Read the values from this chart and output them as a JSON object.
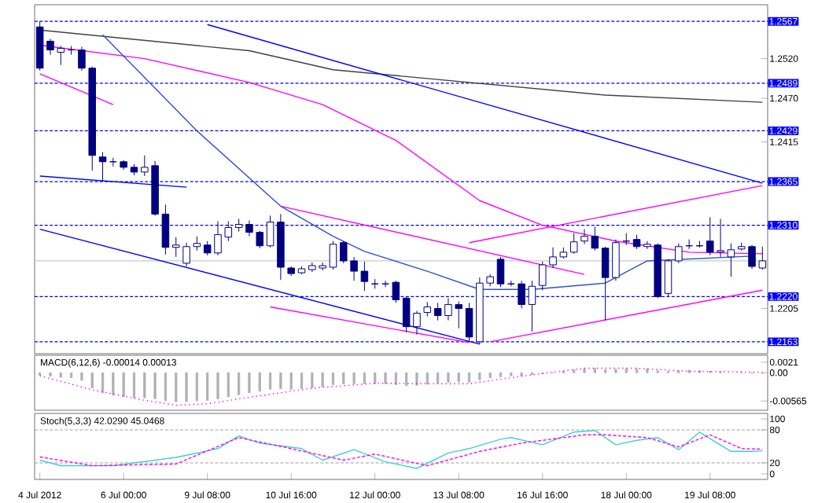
{
  "chart_data": [
    {
      "type": "candlestick",
      "color": "#000080",
      "categories": [
        null,
        null,
        null,
        null,
        null,
        null,
        null,
        null,
        null,
        null,
        null,
        null,
        null,
        null,
        null,
        null,
        null,
        null,
        null,
        null,
        null,
        null,
        null,
        null,
        null,
        null,
        null,
        null,
        null,
        null,
        null,
        null,
        null,
        null,
        null,
        null,
        null,
        null,
        null,
        null,
        null,
        null,
        null,
        null,
        null,
        null,
        null,
        null,
        null,
        null,
        null,
        null,
        null,
        null,
        null,
        null,
        null,
        null,
        null,
        null,
        null,
        null,
        null,
        null,
        null,
        null,
        null,
        null,
        null,
        null
      ],
      "ohlc": [
        [
          1.256,
          1.2567,
          1.2505,
          1.2508
        ],
        [
          1.2542,
          1.2545,
          1.2525,
          1.2531
        ],
        [
          1.2528,
          1.2536,
          1.2512,
          1.2533
        ],
        [
          1.2531,
          1.2536,
          1.2525,
          1.2531
        ],
        [
          1.2531,
          1.2535,
          1.2505,
          1.2508
        ],
        [
          1.2508,
          1.251,
          1.2379,
          1.2398
        ],
        [
          1.2396,
          1.2402,
          1.2366,
          1.239
        ],
        [
          1.239,
          1.2395,
          1.2384,
          1.239
        ],
        [
          1.239,
          1.2392,
          1.238,
          1.2383
        ],
        [
          1.2383,
          1.2387,
          1.2373,
          1.2377
        ],
        [
          1.2377,
          1.2398,
          1.2372,
          1.2383
        ],
        [
          1.2385,
          1.2391,
          1.2322,
          1.2324
        ],
        [
          1.2324,
          1.2336,
          1.2273,
          1.2282
        ],
        [
          1.2282,
          1.2295,
          1.227,
          1.2285
        ],
        [
          1.2262,
          1.2288,
          1.2258,
          1.2283
        ],
        [
          1.2283,
          1.2296,
          1.2278,
          1.2287
        ],
        [
          1.2285,
          1.229,
          1.2272,
          1.2275
        ],
        [
          1.2275,
          1.2315,
          1.2272,
          1.2298
        ],
        [
          1.2295,
          1.2315,
          1.229,
          1.2307
        ],
        [
          1.2307,
          1.2318,
          1.2302,
          1.2311
        ],
        [
          1.2311,
          1.2316,
          1.2296,
          1.2301
        ],
        [
          1.2301,
          1.2303,
          1.2281,
          1.2284
        ],
        [
          1.2284,
          1.2322,
          1.2282,
          1.2314
        ],
        [
          1.2314,
          1.2324,
          1.2241,
          1.2257
        ],
        [
          1.2256,
          1.2258,
          1.2246,
          1.2249
        ],
        [
          1.225,
          1.2258,
          1.2248,
          1.2255
        ],
        [
          1.2254,
          1.2263,
          1.2251,
          1.2259
        ],
        [
          1.2256,
          1.2263,
          1.2253,
          1.2259
        ],
        [
          1.2257,
          1.229,
          1.2254,
          1.2286
        ],
        [
          1.2288,
          1.229,
          1.2262,
          1.2265
        ],
        [
          1.2265,
          1.227,
          1.224,
          1.2252
        ],
        [
          1.2252,
          1.2264,
          1.2227,
          1.2239
        ],
        [
          1.2236,
          1.2242,
          1.223,
          1.2236
        ],
        [
          1.2236,
          1.224,
          1.2232,
          1.2236
        ],
        [
          1.2238,
          1.224,
          1.2212,
          1.2216
        ],
        [
          1.2218,
          1.222,
          1.2175,
          1.2182
        ],
        [
          1.2182,
          1.2202,
          1.2172,
          1.2199
        ],
        [
          1.22,
          1.2213,
          1.2195,
          1.2207
        ],
        [
          1.2205,
          1.2212,
          1.219,
          1.2196
        ],
        [
          1.2196,
          1.2218,
          1.219,
          1.221
        ],
        [
          1.221,
          1.2214,
          1.218,
          1.2205
        ],
        [
          1.2205,
          1.2212,
          1.2163,
          1.2169
        ],
        [
          1.2163,
          1.2244,
          1.216,
          1.2237
        ],
        [
          1.2237,
          1.2248,
          1.2233,
          1.2245
        ],
        [
          1.2267,
          1.227,
          1.2232,
          1.2236
        ],
        [
          1.2236,
          1.224,
          1.2233,
          1.2236
        ],
        [
          1.2236,
          1.224,
          1.2205,
          1.221
        ],
        [
          1.221,
          1.224,
          1.2176,
          1.2233
        ],
        [
          1.2234,
          1.2264,
          1.2228,
          1.226
        ],
        [
          1.226,
          1.2282,
          1.2256,
          1.227
        ],
        [
          1.227,
          1.2282,
          1.2268,
          1.2276
        ],
        [
          1.2276,
          1.23,
          1.2274,
          1.2289
        ],
        [
          1.229,
          1.2305,
          1.2286,
          1.2296
        ],
        [
          1.2296,
          1.2308,
          1.2278,
          1.2281
        ],
        [
          1.2281,
          1.2283,
          1.219,
          1.2244
        ],
        [
          1.2244,
          1.2292,
          1.224,
          1.2288
        ],
        [
          1.229,
          1.23,
          1.2285,
          1.229
        ],
        [
          1.2292,
          1.2298,
          1.228,
          1.2283
        ],
        [
          1.2283,
          1.229,
          1.228,
          1.2286
        ],
        [
          1.2285,
          1.2287,
          1.2218,
          1.222
        ],
        [
          1.2224,
          1.2267,
          1.222,
          1.2265
        ],
        [
          1.2265,
          1.2287,
          1.2262,
          1.2283
        ],
        [
          1.2284,
          1.2292,
          1.228,
          1.2284
        ],
        [
          1.2284,
          1.229,
          1.2282,
          1.2284
        ],
        [
          1.229,
          1.232,
          1.2272,
          1.2276
        ],
        [
          1.2276,
          1.2318,
          1.227,
          1.2278
        ],
        [
          1.227,
          1.2287,
          1.2245,
          1.2279
        ],
        [
          1.228,
          1.2288,
          1.2278,
          1.2283
        ],
        [
          1.2283,
          1.2285,
          1.2255,
          1.2258
        ],
        [
          1.2256,
          1.2283,
          1.2254,
          1.2265
        ]
      ],
      "series": [
        {
          "type": "line",
          "color": "#404040",
          "values": [
            1.2556,
            null,
            null,
            null,
            null,
            null,
            null,
            null,
            null,
            null,
            null,
            null,
            null,
            null,
            null,
            null,
            null,
            null,
            null,
            null,
            1.253,
            null,
            null,
            null,
            null,
            null,
            null,
            null,
            1.2506,
            null,
            null,
            null,
            null,
            null,
            null,
            null,
            null,
            null,
            null,
            null,
            null,
            null,
            null,
            null,
            null,
            null,
            null,
            null,
            null,
            null,
            null,
            null,
            null,
            null,
            1.2474,
            null,
            null,
            null,
            null,
            null,
            null,
            null,
            null,
            null,
            null,
            null,
            null,
            null,
            null,
            1.2465
          ]
        },
        {
          "type": "line",
          "color": "#ff00ff",
          "values": [
            1.2537,
            null,
            null,
            null,
            null,
            null,
            null,
            null,
            null,
            null,
            1.252,
            null,
            null,
            null,
            null,
            null,
            null,
            null,
            null,
            null,
            1.249,
            null,
            null,
            null,
            null,
            null,
            null,
            1.2462,
            null,
            null,
            null,
            null,
            null,
            null,
            1.2417,
            null,
            null,
            null,
            null,
            null,
            null,
            null,
            1.2341,
            null,
            null,
            null,
            null,
            null,
            1.231,
            null,
            null,
            null,
            null,
            null,
            null,
            1.229,
            null,
            null,
            null,
            null,
            null,
            null,
            1.2276,
            null,
            null,
            null,
            null,
            null,
            null,
            1.2274
          ]
        },
        {
          "type": "line",
          "color": "#3050d0",
          "values": [
            null,
            null,
            null,
            null,
            null,
            null,
            1.255,
            null,
            null,
            null,
            null,
            null,
            null,
            null,
            null,
            1.2429,
            null,
            null,
            null,
            null,
            null,
            null,
            null,
            1.2334,
            null,
            null,
            null,
            null,
            1.2296,
            null,
            null,
            1.2277,
            null,
            null,
            null,
            null,
            null,
            1.2252,
            null,
            null,
            null,
            null,
            1.2229,
            null,
            null,
            null,
            null,
            1.2229,
            null,
            null,
            null,
            null,
            null,
            null,
            1.2237,
            null,
            null,
            null,
            1.2265,
            null,
            null,
            null,
            null,
            null,
            null,
            null,
            null,
            null,
            1.2271,
            null
          ]
        },
        {
          "type": "line",
          "color": "#0000ff",
          "values": [
            null,
            null,
            null,
            null,
            null,
            null,
            null,
            null,
            null,
            null,
            null,
            null,
            null,
            null,
            null,
            null,
            1.2563,
            null,
            null,
            null,
            null,
            null,
            null,
            null,
            null,
            null,
            null,
            null,
            null,
            null,
            null,
            null,
            null,
            null,
            null,
            null,
            null,
            null,
            null,
            null,
            null,
            null,
            null,
            null,
            null,
            null,
            null,
            null,
            null,
            null,
            null,
            null,
            null,
            null,
            null,
            null,
            null,
            null,
            null,
            null,
            null,
            null,
            null,
            null,
            null,
            null,
            null,
            null,
            null,
            1.2363
          ]
        },
        {
          "type": "line",
          "color": "#0000ff",
          "values": [
            1.2305,
            null,
            null,
            null,
            null,
            null,
            null,
            null,
            null,
            null,
            null,
            null,
            null,
            null,
            null,
            null,
            null,
            null,
            null,
            null,
            null,
            null,
            null,
            null,
            null,
            null,
            null,
            null,
            null,
            null,
            null,
            null,
            null,
            null,
            null,
            null,
            null,
            null,
            null,
            null,
            null,
            null,
            1.216,
            null,
            null,
            null,
            null,
            null,
            null,
            null,
            null,
            null,
            null,
            null,
            null,
            null,
            null,
            null,
            null,
            null,
            null,
            null,
            null,
            null,
            null,
            null,
            null,
            null,
            null,
            null
          ]
        },
        {
          "type": "line",
          "color": "#0000ff",
          "values": [
            1.2372,
            null,
            null,
            null,
            null,
            null,
            null,
            null,
            null,
            null,
            null,
            null,
            null,
            null,
            1.2358,
            null,
            null,
            null,
            null,
            null,
            null,
            null,
            null,
            null,
            null,
            null,
            null,
            null,
            null,
            null,
            null,
            null,
            null,
            null,
            null,
            null,
            null,
            null,
            null,
            null,
            null,
            null,
            null,
            null,
            null,
            null,
            null,
            null,
            null,
            null,
            null,
            null,
            null,
            null,
            null,
            null,
            null,
            null,
            null,
            null,
            null,
            null,
            null,
            null,
            null,
            null,
            null,
            null,
            null,
            null
          ]
        },
        {
          "type": "line",
          "color": "#ff00ff",
          "values": [
            1.2501,
            null,
            null,
            null,
            null,
            null,
            null,
            1.2462,
            null,
            null,
            null,
            null,
            null,
            null,
            null,
            null,
            null,
            null,
            null,
            null,
            null,
            null,
            null,
            null,
            null,
            null,
            null,
            null,
            null,
            null,
            null,
            null,
            null,
            null,
            null,
            null,
            null,
            null,
            null,
            null,
            null,
            null,
            null,
            null,
            null,
            null,
            null,
            null,
            null,
            null,
            null,
            null,
            null,
            null,
            null,
            null,
            null,
            null,
            null,
            null,
            null,
            null,
            null,
            null,
            null,
            null,
            null,
            null,
            null,
            null
          ]
        },
        {
          "type": "line",
          "color": "#ff00ff",
          "values": [
            null,
            null,
            null,
            null,
            null,
            null,
            null,
            null,
            null,
            null,
            null,
            null,
            null,
            null,
            null,
            null,
            null,
            null,
            null,
            null,
            null,
            null,
            null,
            1.2334,
            null,
            null,
            null,
            null,
            null,
            null,
            null,
            null,
            null,
            null,
            null,
            null,
            null,
            null,
            null,
            null,
            null,
            null,
            null,
            null,
            null,
            null,
            null,
            null,
            null,
            null,
            null,
            null,
            1.2248,
            null,
            null,
            null,
            null,
            null,
            null,
            null,
            null,
            null,
            null,
            null,
            null,
            null,
            null,
            null,
            null,
            null
          ]
        },
        {
          "type": "line",
          "color": "#ff00ff",
          "values": [
            null,
            null,
            null,
            null,
            null,
            null,
            null,
            null,
            null,
            null,
            null,
            null,
            null,
            null,
            null,
            null,
            null,
            null,
            null,
            null,
            null,
            null,
            1.2207,
            null,
            null,
            null,
            null,
            null,
            null,
            null,
            null,
            null,
            null,
            null,
            null,
            null,
            null,
            null,
            null,
            null,
            null,
            1.2162,
            null,
            null,
            null,
            null,
            null,
            null,
            null,
            null,
            null,
            null,
            null,
            null,
            null,
            null,
            null,
            null,
            null,
            null,
            null,
            null,
            null,
            null,
            null,
            null,
            null,
            null,
            null,
            null
          ]
        },
        {
          "type": "line",
          "color": "#ff00ff",
          "values": [
            null,
            null,
            null,
            null,
            null,
            null,
            null,
            null,
            null,
            null,
            null,
            null,
            null,
            null,
            null,
            null,
            null,
            null,
            null,
            null,
            null,
            null,
            null,
            null,
            null,
            null,
            null,
            null,
            null,
            null,
            null,
            null,
            null,
            null,
            null,
            null,
            null,
            null,
            null,
            null,
            null,
            1.2288,
            null,
            null,
            null,
            null,
            null,
            null,
            null,
            null,
            null,
            null,
            null,
            null,
            null,
            null,
            null,
            null,
            null,
            null,
            null,
            null,
            null,
            null,
            null,
            null,
            null,
            null,
            null,
            1.236
          ]
        },
        {
          "type": "line",
          "color": "#ff00ff",
          "values": [
            null,
            null,
            null,
            null,
            null,
            null,
            null,
            null,
            null,
            null,
            null,
            null,
            null,
            null,
            null,
            null,
            null,
            null,
            null,
            null,
            null,
            null,
            null,
            null,
            null,
            null,
            null,
            null,
            null,
            null,
            null,
            null,
            null,
            null,
            null,
            null,
            null,
            null,
            null,
            null,
            null,
            null,
            null,
            1.2163,
            null,
            null,
            null,
            null,
            null,
            null,
            null,
            null,
            null,
            null,
            null,
            null,
            null,
            null,
            null,
            null,
            null,
            null,
            null,
            null,
            null,
            null,
            null,
            null,
            null,
            1.2228
          ]
        }
      ],
      "ylim": [
        1.2148,
        1.2588
      ],
      "yticks": [
        1.2205,
        1.2415,
        {
          "value": 1.247,
          "label": "1.2470"
        },
        {
          "value": 1.252,
          "label": "1.2520"
        }
      ],
      "ref_lines": [
        {
          "axis": "y",
          "value": 1.2567,
          "label": "1.2567",
          "color": "#0000ff",
          "line_style": "dashed"
        },
        {
          "axis": "y",
          "value": 1.2489,
          "label": "1.2489",
          "color": "#0000ff",
          "line_style": "dashed"
        },
        {
          "axis": "y",
          "value": 1.2429,
          "label": "1.2429",
          "color": "#0000ff",
          "line_style": "dashed"
        },
        {
          "axis": "y",
          "value": 1.2365,
          "label": "1.2365",
          "color": "#0000ff",
          "line_style": "dashed"
        },
        {
          "axis": "y",
          "value": 1.231,
          "label": "1.2310",
          "color": "#0000ff",
          "line_style": "dashed"
        },
        {
          "axis": "y",
          "value": 1.222,
          "label": "1.2220",
          "color": "#0000ff",
          "line_style": "dashed"
        },
        {
          "axis": "y",
          "value": 1.2163,
          "label": "1.2163",
          "color": "#0000ff",
          "line_style": "dashed"
        },
        {
          "axis": "y",
          "value": 1.2265,
          "color": "#c8c8c8",
          "line_style": "solid"
        }
      ],
      "tick_labels": "y"
    },
    {
      "type": "bar",
      "title": "MACD(6,12,6) -0.00014 0.00013",
      "categories": [
        null,
        null,
        null,
        null,
        null,
        null,
        null,
        null,
        null,
        null,
        null,
        null,
        null,
        null,
        null,
        null,
        null,
        null,
        null,
        null,
        null,
        null,
        null,
        null,
        null,
        null,
        null,
        null,
        null,
        null,
        null,
        null,
        null,
        null,
        null,
        null,
        null,
        null,
        null,
        null,
        null,
        null,
        null,
        null,
        null,
        null,
        null,
        null,
        null,
        null,
        null,
        null,
        null,
        null,
        null,
        null,
        null,
        null,
        null,
        null,
        null,
        null,
        null,
        null,
        null,
        null,
        null,
        null,
        null,
        null
      ],
      "series": [
        {
          "type": "bar",
          "color": "#b0b0b0",
          "values": [
            -0.0005,
            -0.0007,
            -0.0009,
            -0.001,
            -0.0015,
            -0.003,
            -0.004,
            -0.0045,
            -0.0048,
            -0.005,
            -0.005,
            -0.0052,
            -0.0056,
            -0.0058,
            -0.0058,
            -0.0056,
            -0.0055,
            -0.0052,
            -0.0048,
            -0.0044,
            -0.004,
            -0.0037,
            -0.0033,
            -0.0032,
            -0.0033,
            -0.0032,
            -0.003,
            -0.0028,
            -0.0024,
            -0.0022,
            -0.0022,
            -0.0022,
            -0.0022,
            -0.0022,
            -0.0024,
            -0.0026,
            -0.0025,
            -0.0023,
            -0.0021,
            -0.0019,
            -0.0018,
            -0.0019,
            -0.0014,
            -0.001,
            -0.0008,
            -0.0006,
            -0.0006,
            -0.0004,
            -0.0002,
            0.0,
            0.0003,
            0.0006,
            0.0008,
            0.0009,
            0.0006,
            0.0007,
            0.0008,
            0.0008,
            0.0008,
            0.0004,
            0.0003,
            0.0004,
            0.0005,
            0.0004,
            0.0003,
            0.0002,
            null,
            0.0,
            -0.0001,
            -0.0001
          ]
        },
        {
          "type": "line",
          "color": "#ff00ff",
          "line_style": "dotted",
          "values": [
            -0.0006,
            null,
            null,
            null,
            null,
            -0.0034,
            null,
            null,
            null,
            null,
            -0.0055,
            null,
            null,
            -0.0065,
            null,
            null,
            -0.0062,
            null,
            null,
            null,
            -0.0049,
            null,
            null,
            null,
            null,
            null,
            -0.0031,
            null,
            null,
            null,
            null,
            null,
            -0.0021,
            null,
            null,
            null,
            null,
            null,
            null,
            -0.0022,
            null,
            -0.0022,
            null,
            null,
            null,
            null,
            -0.0007,
            null,
            null,
            null,
            null,
            null,
            0.0009,
            null,
            null,
            null,
            null,
            0.0009,
            null,
            null,
            null,
            null,
            0.0003,
            null,
            null,
            null,
            null,
            null,
            null,
            0.0001
          ]
        }
      ],
      "ylim": [
        -0.0075,
        0.0035
      ],
      "yticks": [
        -0.00565,
        {
          "value": 0,
          "label": "0.00"
        },
        0.0021
      ],
      "tick_labels": "y"
    },
    {
      "type": "line",
      "title": "Stoch(5,3,3) 42.0290 45.0468",
      "categories": [
        "4 Jul 2012",
        null,
        null,
        null,
        null,
        null,
        null,
        null,
        "6 Jul 00:00",
        null,
        null,
        null,
        null,
        null,
        null,
        null,
        "9 Jul 08:00",
        null,
        null,
        null,
        null,
        null,
        null,
        null,
        "10 Jul 16:00",
        null,
        null,
        null,
        null,
        null,
        null,
        null,
        "12 Jul 00:00",
        null,
        null,
        null,
        null,
        null,
        null,
        null,
        "13 Jul 08:00",
        null,
        null,
        null,
        null,
        null,
        null,
        null,
        "16 Jul 16:00",
        null,
        null,
        null,
        null,
        null,
        null,
        null,
        "18 Jul 00:00",
        null,
        null,
        null,
        null,
        null,
        null,
        null,
        "19 Jul 08:00",
        null,
        null,
        null,
        null,
        null
      ],
      "series": [
        {
          "type": "line",
          "color": "#40d0d0",
          "values": [
            25,
            null,
            15,
            null,
            null,
            null,
            null,
            15,
            null,
            null,
            null,
            null,
            null,
            30,
            null,
            null,
            null,
            46,
            null,
            69,
            null,
            56,
            null,
            null,
            null,
            46,
            null,
            25,
            null,
            null,
            44,
            null,
            null,
            22,
            null,
            null,
            10,
            null,
            null,
            38,
            null,
            46,
            null,
            null,
            63,
            66,
            null,
            null,
            53,
            null,
            null,
            76,
            null,
            79,
            null,
            53,
            null,
            61,
            null,
            66,
            null,
            44,
            null,
            76,
            null,
            null,
            41,
            null,
            41,
            42
          ]
        },
        {
          "type": "line",
          "color": "#ff00ff",
          "line_style": "dashed",
          "values": [
            31,
            null,
            null,
            null,
            null,
            15,
            null,
            null,
            null,
            null,
            null,
            null,
            null,
            18,
            null,
            null,
            null,
            null,
            null,
            66,
            null,
            null,
            null,
            50,
            null,
            null,
            null,
            null,
            null,
            25,
            null,
            null,
            36,
            null,
            null,
            null,
            null,
            15,
            null,
            null,
            null,
            null,
            41,
            null,
            null,
            null,
            56,
            null,
            null,
            null,
            null,
            null,
            71,
            null,
            71,
            null,
            null,
            null,
            66,
            null,
            null,
            49,
            null,
            null,
            71,
            null,
            null,
            46,
            null,
            45
          ]
        }
      ],
      "ylim": [
        -10,
        110
      ],
      "yticks": [
        0,
        20,
        80,
        100
      ],
      "ref_lines": [
        {
          "axis": "y",
          "value": 20,
          "color": "#a0a0a0",
          "line_style": "dashed"
        },
        {
          "axis": "y",
          "value": 80,
          "color": "#a0a0a0",
          "line_style": "dashed"
        }
      ]
    }
  ]
}
